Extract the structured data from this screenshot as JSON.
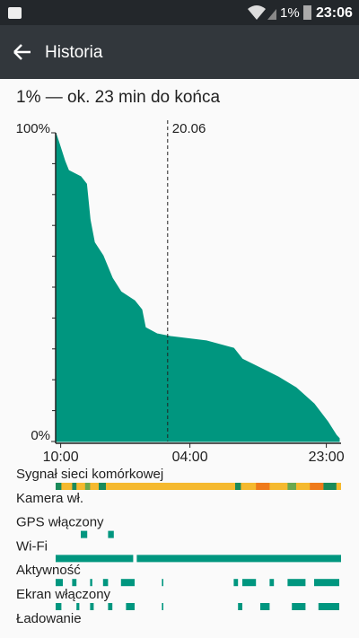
{
  "status_bar": {
    "battery": "1%",
    "time": "23:06"
  },
  "app_bar": {
    "title": "Historia"
  },
  "summary": "1% — ok. 23 min do końca",
  "chart_data": {
    "type": "area",
    "series": [
      {
        "color": "#00967f",
        "x": [
          -0.7,
          -0.2,
          0.6,
          1.1,
          2.8,
          3.6,
          4.1,
          4.7,
          5.9,
          7.2,
          8.4,
          10.3,
          11.3,
          11.8,
          13.4,
          15.3,
          20.3,
          24.1,
          25.3,
          27.8,
          30.3,
          32.8,
          35.3,
          37.2,
          38.4,
          38.8
        ],
        "values": [
          100,
          96.5,
          90.7,
          87.8,
          85.8,
          83.4,
          71.8,
          64.5,
          60.2,
          52.9,
          48.5,
          45.6,
          42.7,
          36.9,
          34.9,
          34.0,
          32.6,
          30.2,
          26.7,
          23.8,
          20.9,
          17.4,
          12.2,
          6.4,
          2.0,
          1
        ]
      }
    ],
    "xlim": [
      -0.7,
      39.05
    ],
    "ylim": [
      0,
      100
    ],
    "xticks": [
      {
        "value": 0,
        "label": "10:00"
      },
      {
        "value": 18,
        "label": "04:00"
      },
      {
        "value": 37,
        "label": "23:00"
      }
    ],
    "yticks": [
      {
        "value": 100,
        "label": "100%"
      },
      {
        "value": 0,
        "label": "0%"
      }
    ],
    "markers": [
      {
        "x": 14.9,
        "label": "20.06"
      }
    ],
    "tracks": [
      {
        "name": "Sygnał sieci komórkowej",
        "segments": [
          {
            "from": -0.7,
            "to": 39.05,
            "color": "#f5b92e"
          },
          {
            "from": -0.7,
            "to": 0.1,
            "color": "#1a8a5a"
          },
          {
            "from": 1.6,
            "to": 2.2,
            "color": "#1a8a5a"
          },
          {
            "from": 3.4,
            "to": 4.1,
            "color": "#6aa84f"
          },
          {
            "from": 5.3,
            "to": 6.3,
            "color": "#1a8a5a"
          },
          {
            "from": 24.3,
            "to": 25.1,
            "color": "#1a8a5a"
          },
          {
            "from": 27.2,
            "to": 29.1,
            "color": "#ef7a1a"
          },
          {
            "from": 31.6,
            "to": 32.8,
            "color": "#6aa84f"
          },
          {
            "from": 34.7,
            "to": 36.6,
            "color": "#ef7a1a"
          },
          {
            "from": 36.6,
            "to": 38.4,
            "color": "#1a8a5a"
          }
        ]
      },
      {
        "name": "Kamera wł.",
        "segments": []
      },
      {
        "name": "GPS włączony",
        "segments": [
          {
            "from": 2.8,
            "to": 3.7,
            "color": "#00967f"
          },
          {
            "from": 6.6,
            "to": 7.4,
            "color": "#00967f"
          }
        ]
      },
      {
        "name": "Wi-Fi",
        "segments": [
          {
            "from": -0.7,
            "to": 10.1,
            "color": "#00967f"
          },
          {
            "from": 10.6,
            "to": 39.05,
            "color": "#00967f"
          }
        ]
      },
      {
        "name": "Aktywność",
        "segments": [
          {
            "from": -0.7,
            "to": 0.3,
            "color": "#00967f"
          },
          {
            "from": 1.6,
            "to": 2.2,
            "color": "#00967f"
          },
          {
            "from": 4.1,
            "to": 4.4,
            "color": "#00967f"
          },
          {
            "from": 5.9,
            "to": 6.6,
            "color": "#00967f"
          },
          {
            "from": 8.4,
            "to": 10.3,
            "color": "#00967f"
          },
          {
            "from": 14.1,
            "to": 14.3,
            "color": "#00967f"
          },
          {
            "from": 24.1,
            "to": 24.7,
            "color": "#00967f"
          },
          {
            "from": 25.3,
            "to": 27.2,
            "color": "#00967f"
          },
          {
            "from": 29.1,
            "to": 29.7,
            "color": "#00967f"
          },
          {
            "from": 31.6,
            "to": 34.1,
            "color": "#00967f"
          },
          {
            "from": 35.3,
            "to": 38.8,
            "color": "#00967f"
          }
        ]
      },
      {
        "name": "Ekran włączony",
        "segments": [
          {
            "from": -0.7,
            "to": 0.1,
            "color": "#00967f"
          },
          {
            "from": 2.2,
            "to": 2.6,
            "color": "#00967f"
          },
          {
            "from": 4.1,
            "to": 4.6,
            "color": "#00967f"
          },
          {
            "from": 6.6,
            "to": 7.2,
            "color": "#00967f"
          },
          {
            "from": 9.1,
            "to": 10.3,
            "color": "#00967f"
          },
          {
            "from": 14.1,
            "to": 14.3,
            "color": "#00967f"
          },
          {
            "from": 24.7,
            "to": 25.3,
            "color": "#00967f"
          },
          {
            "from": 27.8,
            "to": 29.1,
            "color": "#00967f"
          },
          {
            "from": 32.2,
            "to": 34.1,
            "color": "#00967f"
          },
          {
            "from": 35.9,
            "to": 38.8,
            "color": "#00967f"
          }
        ]
      },
      {
        "name": "Ładowanie",
        "segments": []
      }
    ]
  }
}
